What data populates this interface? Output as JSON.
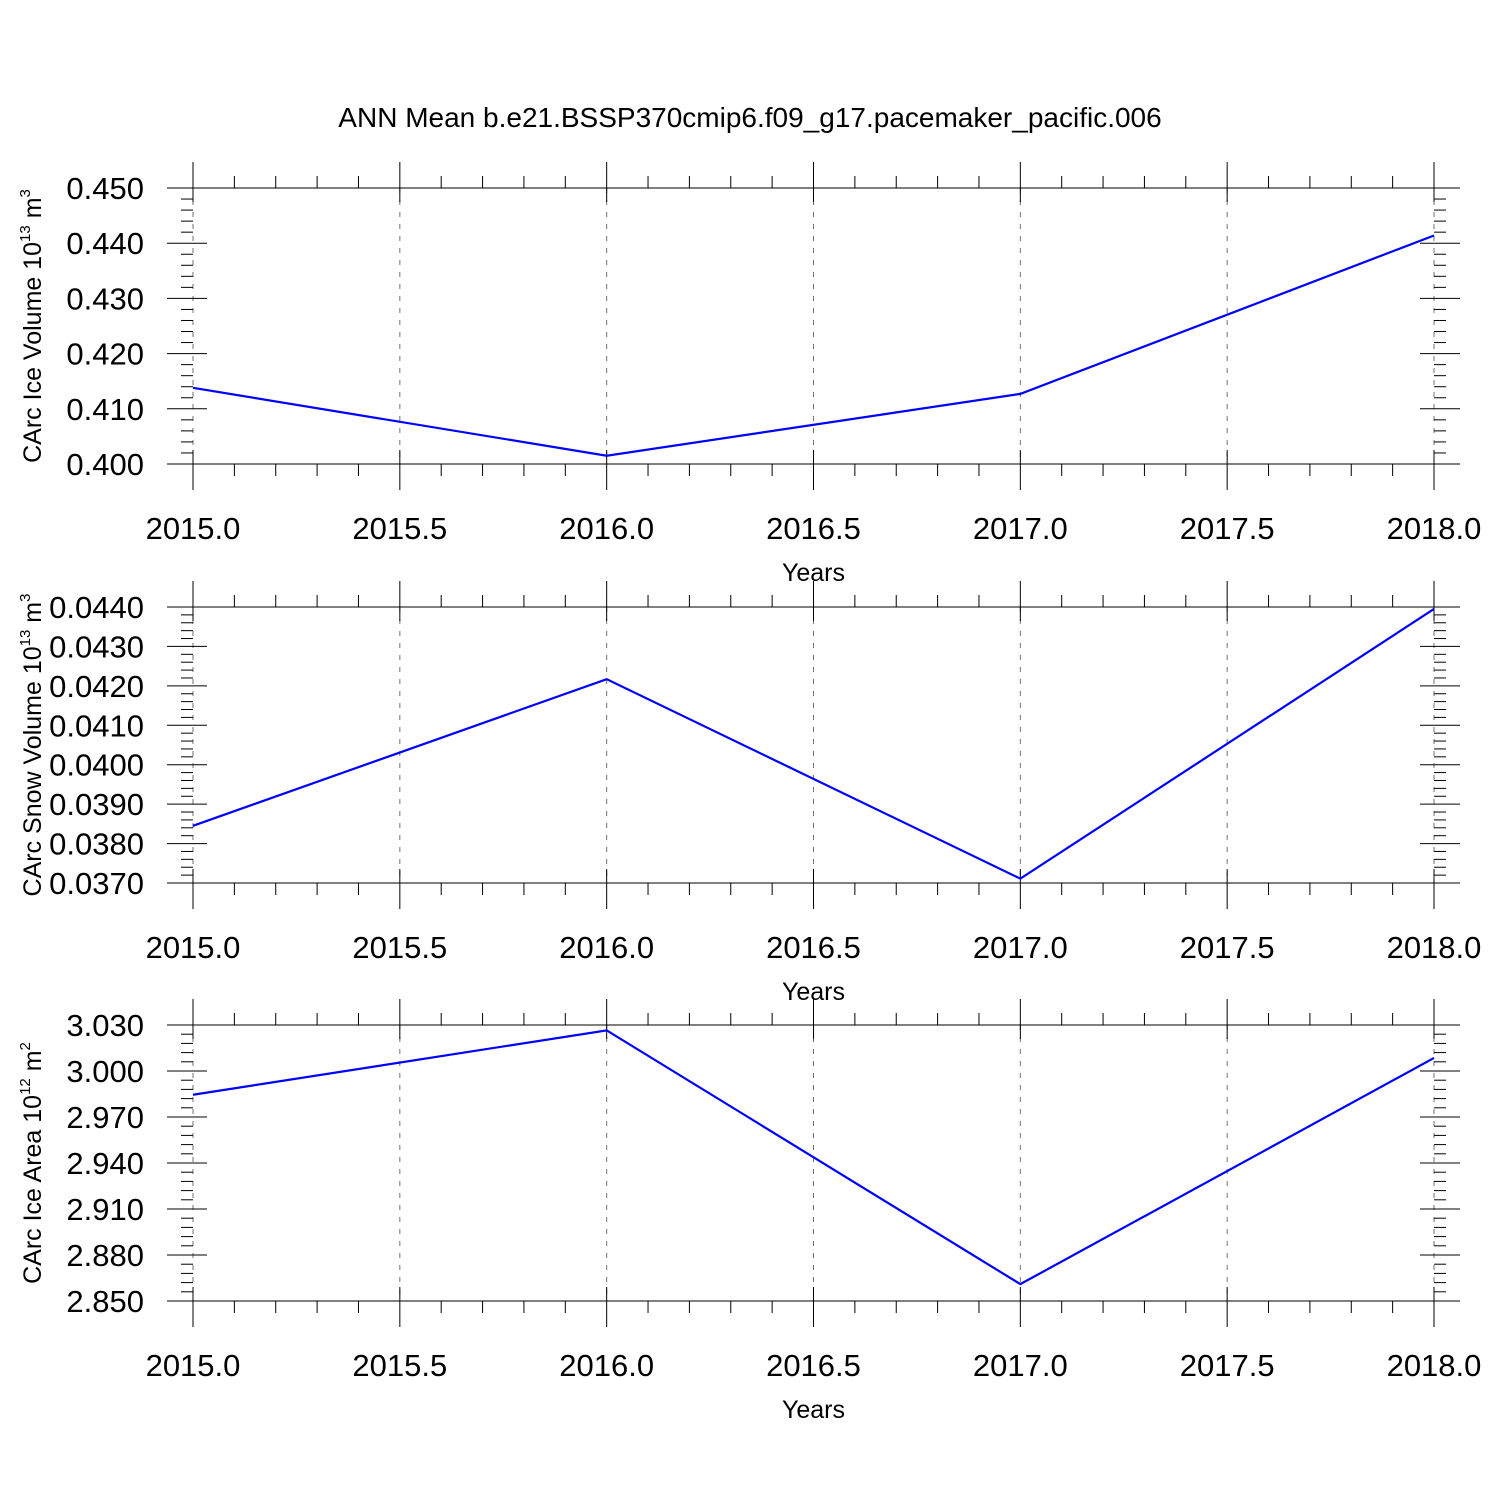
{
  "title": "ANN Mean b.e21.BSSP370cmip6.f09_g17.pacemaker_pacific.006",
  "line_color": "#0000ff",
  "chart_data": [
    {
      "type": "line",
      "title": "",
      "xlabel": "Years",
      "ylabel": "CArc Ice Volume 10",
      "ylabel_exponent": "13",
      "ylabel_unit": "m",
      "ylabel_unit_exponent": "3",
      "xlim": [
        2015.0,
        2018.0
      ],
      "ylim": [
        0.4,
        0.45
      ],
      "xticks": [
        "2015.0",
        "2015.5",
        "2016.0",
        "2016.5",
        "2017.0",
        "2017.5",
        "2018.0"
      ],
      "xtick_values": [
        2015.0,
        2015.5,
        2016.0,
        2016.5,
        2017.0,
        2017.5,
        2018.0
      ],
      "yticks": [
        "0.400",
        "0.410",
        "0.420",
        "0.430",
        "0.440",
        "0.450"
      ],
      "ytick_values": [
        0.4,
        0.41,
        0.42,
        0.43,
        0.44,
        0.45
      ],
      "grid": "vertical dashed at major x ticks",
      "x": [
        2015,
        2016,
        2017,
        2018
      ],
      "values": [
        0.4138,
        0.4015,
        0.4127,
        0.4414
      ]
    },
    {
      "type": "line",
      "title": "",
      "xlabel": "Years",
      "ylabel": "CArc Snow Volume 10",
      "ylabel_exponent": "13",
      "ylabel_unit": "m",
      "ylabel_unit_exponent": "3",
      "xlim": [
        2015.0,
        2018.0
      ],
      "ylim": [
        0.037,
        0.044
      ],
      "xticks": [
        "2015.0",
        "2015.5",
        "2016.0",
        "2016.5",
        "2017.0",
        "2017.5",
        "2018.0"
      ],
      "xtick_values": [
        2015.0,
        2015.5,
        2016.0,
        2016.5,
        2017.0,
        2017.5,
        2018.0
      ],
      "yticks": [
        "0.0370",
        "0.0380",
        "0.0390",
        "0.0400",
        "0.0410",
        "0.0420",
        "0.0430",
        "0.0440"
      ],
      "ytick_values": [
        0.037,
        0.038,
        0.039,
        0.04,
        0.041,
        0.042,
        0.043,
        0.044
      ],
      "grid": "vertical dashed at major x ticks",
      "x": [
        2015,
        2016,
        2017,
        2018
      ],
      "values": [
        0.03845,
        0.04217,
        0.03711,
        0.04395
      ]
    },
    {
      "type": "line",
      "title": "",
      "xlabel": "Years",
      "ylabel": "CArc Ice Area 10",
      "ylabel_exponent": "12",
      "ylabel_unit": "m",
      "ylabel_unit_exponent": "2",
      "xlim": [
        2015.0,
        2018.0
      ],
      "ylim": [
        2.85,
        3.03
      ],
      "xticks": [
        "2015.0",
        "2015.5",
        "2016.0",
        "2016.5",
        "2017.0",
        "2017.5",
        "2018.0"
      ],
      "xtick_values": [
        2015.0,
        2015.5,
        2016.0,
        2016.5,
        2017.0,
        2017.5,
        2018.0
      ],
      "yticks": [
        "2.850",
        "2.880",
        "2.910",
        "2.940",
        "2.970",
        "3.000",
        "3.030"
      ],
      "ytick_values": [
        2.85,
        2.88,
        2.91,
        2.94,
        2.97,
        3.0,
        3.03
      ],
      "grid": "vertical dashed at major x ticks",
      "x": [
        2015,
        2016,
        2017,
        2018
      ],
      "values": [
        2.9845,
        3.0265,
        2.861,
        3.0085
      ]
    }
  ]
}
